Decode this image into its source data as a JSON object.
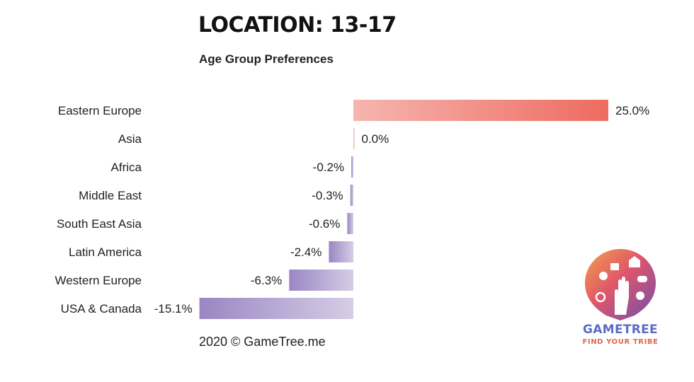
{
  "header": {
    "title": "LOCATION: 13-17",
    "subtitle": "Age Group Preferences"
  },
  "footer": {
    "credit": "2020 © GameTree.me"
  },
  "logo": {
    "wordmark": "GAMETREE",
    "tagline": "FIND YOUR TRIBE"
  },
  "colors": {
    "positive_start": "#f6b5b0",
    "positive_end": "#ee6b60",
    "negative_start": "#9a86c3",
    "negative_end": "#d6cde6",
    "label_text": "#222222"
  },
  "chart_data": {
    "type": "bar",
    "orientation": "horizontal",
    "title": "LOCATION: 13-17",
    "subtitle": "Age Group Preferences",
    "categories": [
      "Eastern Europe",
      "Asia",
      "Africa",
      "Middle East",
      "South East Asia",
      "Latin America",
      "Western Europe",
      "USA & Canada"
    ],
    "values": [
      25.0,
      0.0,
      -0.2,
      -0.3,
      -0.6,
      -2.4,
      -6.3,
      -15.1
    ],
    "value_labels": [
      "25.0%",
      "0.0%",
      "-0.2%",
      "-0.3%",
      "-0.6%",
      "-2.4%",
      "-6.3%",
      "-15.1%"
    ],
    "xlim": [
      -15.1,
      25.0
    ],
    "unit": "%",
    "grid": false,
    "legend": "none"
  }
}
